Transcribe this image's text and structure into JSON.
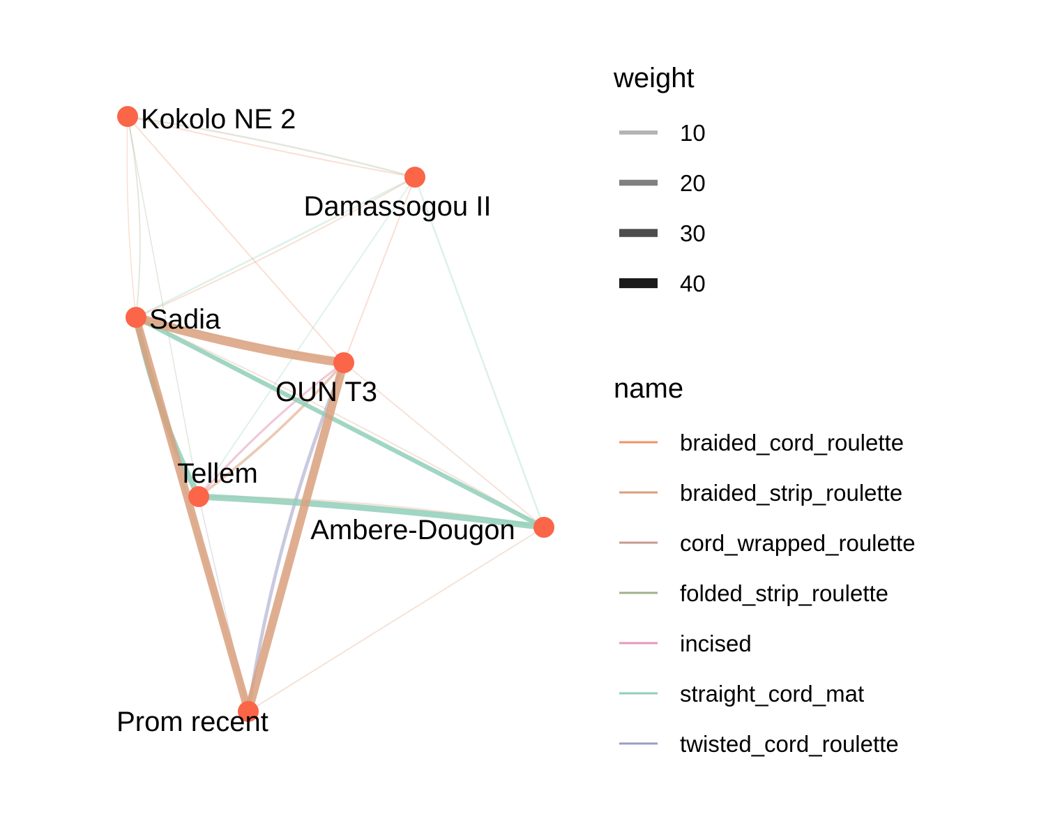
{
  "legend": {
    "weight": {
      "title": "weight",
      "items": [
        {
          "label": "10",
          "weight": 10
        },
        {
          "label": "20",
          "weight": 20
        },
        {
          "label": "30",
          "weight": 30
        },
        {
          "label": "40",
          "weight": 40
        }
      ]
    },
    "name": {
      "title": "name",
      "items": [
        {
          "label": "braided_cord_roulette",
          "color": "#f0936a"
        },
        {
          "label": "braided_strip_roulette",
          "color": "#d9a07c"
        },
        {
          "label": "cord_wrapped_roulette",
          "color": "#c69a8d"
        },
        {
          "label": "folded_strip_roulette",
          "color": "#9fb18a"
        },
        {
          "label": "incised",
          "color": "#e39ab9"
        },
        {
          "label": "straight_cord_mat",
          "color": "#8fcfb8"
        },
        {
          "label": "twisted_cord_roulette",
          "color": "#9c9dc4"
        }
      ]
    }
  },
  "node_color": "#fb6548",
  "nodes": [
    {
      "id": "kokolo",
      "label": "Kokolo NE 2"
    },
    {
      "id": "damassogou",
      "label": "Damassogou II"
    },
    {
      "id": "sadia",
      "label": "Sadia"
    },
    {
      "id": "oun",
      "label": "OUN T3"
    },
    {
      "id": "tellem",
      "label": "Tellem"
    },
    {
      "id": "ambere",
      "label": "Ambere-Dougon"
    },
    {
      "id": "prom",
      "label": "Prom recent"
    }
  ],
  "edges": [
    {
      "from": "sadia",
      "to": "oun",
      "type": "braided_strip_roulette",
      "weight": 40
    },
    {
      "from": "sadia",
      "to": "prom",
      "type": "braided_strip_roulette",
      "weight": 35
    },
    {
      "from": "oun",
      "to": "prom",
      "type": "braided_strip_roulette",
      "weight": 38
    },
    {
      "from": "sadia",
      "to": "tellem",
      "type": "straight_cord_mat",
      "weight": 25
    },
    {
      "from": "tellem",
      "to": "ambere",
      "type": "straight_cord_mat",
      "weight": 28
    },
    {
      "from": "sadia",
      "to": "ambere",
      "type": "straight_cord_mat",
      "weight": 20
    },
    {
      "from": "oun",
      "to": "prom",
      "type": "twisted_cord_roulette",
      "weight": 15
    },
    {
      "from": "tellem",
      "to": "oun",
      "type": "incised",
      "weight": 10
    },
    {
      "from": "tellem",
      "to": "oun",
      "type": "braided_strip_roulette",
      "weight": 12
    },
    {
      "from": "kokolo",
      "to": "damassogou",
      "type": "folded_strip_roulette",
      "weight": 8
    },
    {
      "from": "kokolo",
      "to": "damassogou",
      "type": "braided_cord_roulette",
      "weight": 6
    },
    {
      "from": "kokolo",
      "to": "oun",
      "type": "braided_cord_roulette",
      "weight": 6
    },
    {
      "from": "kokolo",
      "to": "sadia",
      "type": "folded_strip_roulette",
      "weight": 6
    },
    {
      "from": "kokolo",
      "to": "sadia",
      "type": "braided_cord_roulette",
      "weight": 4
    },
    {
      "from": "kokolo",
      "to": "tellem",
      "type": "folded_strip_roulette",
      "weight": 4
    },
    {
      "from": "damassogou",
      "to": "ambere",
      "type": "straight_cord_mat",
      "weight": 8
    },
    {
      "from": "damassogou",
      "to": "sadia",
      "type": "straight_cord_mat",
      "weight": 8
    },
    {
      "from": "damassogou",
      "to": "sadia",
      "type": "braided_cord_roulette",
      "weight": 6
    },
    {
      "from": "damassogou",
      "to": "oun",
      "type": "braided_cord_roulette",
      "weight": 6
    },
    {
      "from": "damassogou",
      "to": "tellem",
      "type": "straight_cord_mat",
      "weight": 6
    },
    {
      "from": "sadia",
      "to": "oun",
      "type": "cord_wrapped_roulette",
      "weight": 8
    },
    {
      "from": "sadia",
      "to": "ambere",
      "type": "braided_strip_roulette",
      "weight": 6
    },
    {
      "from": "oun",
      "to": "ambere",
      "type": "braided_strip_roulette",
      "weight": 6
    },
    {
      "from": "tellem",
      "to": "ambere",
      "type": "braided_strip_roulette",
      "weight": 8
    },
    {
      "from": "tellem",
      "to": "prom",
      "type": "twisted_cord_roulette",
      "weight": 5
    },
    {
      "from": "ambere",
      "to": "prom",
      "type": "braided_strip_roulette",
      "weight": 6
    },
    {
      "from": "sadia",
      "to": "prom",
      "type": "twisted_cord_roulette",
      "weight": 4
    }
  ]
}
